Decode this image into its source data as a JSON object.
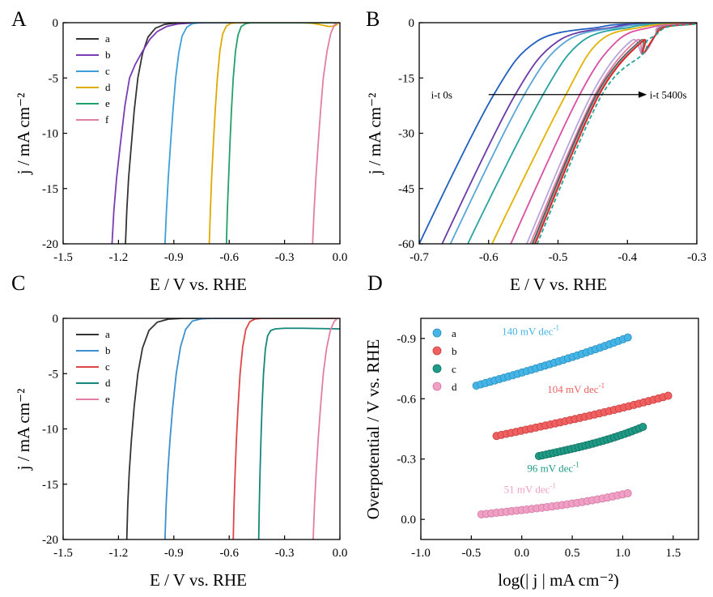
{
  "chart_data": [
    {
      "panel": "A",
      "type": "line",
      "xlabel": "E / V vs. RHE",
      "ylabel": "j / mA cm⁻²",
      "xlim": [
        -1.5,
        0.0
      ],
      "ylim": [
        -20,
        0
      ],
      "xticks": [
        -1.5,
        -1.2,
        -0.9,
        -0.6,
        -0.3,
        0.0
      ],
      "xtick_labels": [
        "-1.5",
        "-1.2",
        "-0.9",
        "-0.6",
        "-0.3",
        "0.0"
      ],
      "yticks": [
        0,
        -5,
        -10,
        -15,
        -20
      ],
      "ytick_labels": [
        "0",
        "-5",
        "-10",
        "-15",
        "-20"
      ],
      "legend": "top-left",
      "series": [
        {
          "name": "a",
          "color": "#333333",
          "points": [
            [
              -1.162,
              -20
            ],
            [
              -1.155,
              -17
            ],
            [
              -1.145,
              -14
            ],
            [
              -1.13,
              -11
            ],
            [
              -1.115,
              -8
            ],
            [
              -1.095,
              -5
            ],
            [
              -1.07,
              -2.8
            ],
            [
              -1.04,
              -1.3
            ],
            [
              -1.0,
              -0.5
            ],
            [
              -0.95,
              -0.15
            ],
            [
              -0.9,
              -0.05
            ],
            [
              -0.8,
              0
            ],
            [
              0.0,
              0
            ]
          ]
        },
        {
          "name": "b",
          "color": "#7a3bb5",
          "points": [
            [
              -1.235,
              -20
            ],
            [
              -1.225,
              -17
            ],
            [
              -1.21,
              -14
            ],
            [
              -1.19,
              -11
            ],
            [
              -1.165,
              -7.5
            ],
            [
              -1.14,
              -5
            ],
            [
              -1.11,
              -3.8
            ],
            [
              -1.07,
              -2.6
            ],
            [
              -1.03,
              -1.5
            ],
            [
              -0.99,
              -0.8
            ],
            [
              -0.94,
              -0.35
            ],
            [
              -0.88,
              -0.12
            ],
            [
              -0.8,
              -0.03
            ],
            [
              -0.7,
              0
            ],
            [
              0.0,
              0
            ]
          ]
        },
        {
          "name": "c",
          "color": "#3d9fd9",
          "points": [
            [
              -0.948,
              -20
            ],
            [
              -0.94,
              -17
            ],
            [
              -0.93,
              -14
            ],
            [
              -0.918,
              -11
            ],
            [
              -0.905,
              -8
            ],
            [
              -0.89,
              -5
            ],
            [
              -0.873,
              -2.7
            ],
            [
              -0.855,
              -1.2
            ],
            [
              -0.83,
              -0.4
            ],
            [
              -0.8,
              -0.1
            ],
            [
              -0.76,
              0
            ],
            [
              0.0,
              0
            ]
          ]
        },
        {
          "name": "d",
          "color": "#e0a900",
          "points": [
            [
              -0.708,
              -20
            ],
            [
              -0.702,
              -17
            ],
            [
              -0.695,
              -14
            ],
            [
              -0.686,
              -11
            ],
            [
              -0.676,
              -8
            ],
            [
              -0.664,
              -5
            ],
            [
              -0.65,
              -2.5
            ],
            [
              -0.635,
              -1.0
            ],
            [
              -0.615,
              -0.3
            ],
            [
              -0.59,
              -0.05
            ],
            [
              -0.55,
              0
            ],
            [
              0.0,
              0
            ]
          ]
        },
        {
          "name": "e",
          "color": "#22a06b",
          "points": [
            [
              -0.615,
              -20
            ],
            [
              -0.61,
              -17
            ],
            [
              -0.603,
              -14
            ],
            [
              -0.596,
              -11
            ],
            [
              -0.588,
              -8
            ],
            [
              -0.578,
              -5
            ],
            [
              -0.566,
              -2.6
            ],
            [
              -0.552,
              -1.1
            ],
            [
              -0.535,
              -0.35
            ],
            [
              -0.51,
              -0.08
            ],
            [
              -0.48,
              0
            ],
            [
              0.0,
              0
            ]
          ]
        },
        {
          "name": "f",
          "color": "#e07ea6",
          "points": [
            [
              -0.148,
              -20
            ],
            [
              -0.14,
              -17
            ],
            [
              -0.13,
              -14
            ],
            [
              -0.118,
              -11
            ],
            [
              -0.105,
              -8
            ],
            [
              -0.09,
              -5
            ],
            [
              -0.07,
              -2.6
            ],
            [
              -0.05,
              -1.0
            ],
            [
              -0.03,
              -0.2
            ],
            [
              -0.015,
              0
            ],
            [
              -0.005,
              0
            ]
          ]
        }
      ],
      "extra_traces": [
        {
          "color": "#e0a900",
          "points": [
            [
              -0.22,
              0
            ],
            [
              -0.15,
              -0.05
            ],
            [
              -0.1,
              -0.2
            ],
            [
              -0.06,
              -0.35
            ],
            [
              -0.03,
              -0.3
            ],
            [
              -0.01,
              -0.1
            ]
          ]
        }
      ]
    },
    {
      "panel": "B",
      "type": "line",
      "xlabel": "E / V vs. RHE",
      "ylabel": "j / mA cm⁻²",
      "xlim": [
        -0.7,
        -0.3
      ],
      "ylim": [
        -60,
        0
      ],
      "xticks": [
        -0.7,
        -0.6,
        -0.5,
        -0.4,
        -0.3
      ],
      "xtick_labels": [
        "-0.7",
        "-0.6",
        "-0.5",
        "-0.4",
        "-0.3"
      ],
      "yticks": [
        0,
        -15,
        -30,
        -45,
        -60
      ],
      "ytick_labels": [
        "0",
        "-15",
        "-30",
        "-45",
        "-60"
      ],
      "annotation_left": "i-t 0s",
      "annotation_right": "i-t 5400s",
      "series": [
        {
          "color": "#1f5fbf",
          "x60": -0.7,
          "x20": -0.594,
          "x05": -0.53,
          "x01": -0.44
        },
        {
          "color": "#6a3aa8",
          "x60": -0.667,
          "x20": -0.563,
          "x05": -0.5,
          "x01": -0.42
        },
        {
          "color": "#5aa6d6",
          "x60": -0.655,
          "x20": -0.55,
          "x05": -0.488,
          "x01": -0.41
        },
        {
          "color": "#2aa3a0",
          "x60": -0.63,
          "x20": -0.523,
          "x05": -0.465,
          "x01": -0.395
        },
        {
          "color": "#e3b100",
          "x60": -0.595,
          "x20": -0.49,
          "x05": -0.44,
          "x01": -0.38
        },
        {
          "color": "#d94fa3",
          "x60": -0.568,
          "x20": -0.47,
          "x05": -0.415,
          "x01": -0.365
        },
        {
          "color": "#b9a6d8",
          "x60": -0.545,
          "x20": -0.453,
          "x05": -0.395,
          "x01": -0.355
        },
        {
          "color": "#e07ea6",
          "x60": -0.54,
          "x20": -0.448,
          "x05": -0.388,
          "x01": -0.352
        },
        {
          "color": "#555555",
          "x60": -0.537,
          "x20": -0.446,
          "x05": -0.382,
          "x01": -0.35
        },
        {
          "color": "#9a9a9a",
          "x60": -0.535,
          "x20": -0.444,
          "x05": -0.38,
          "x01": -0.348
        },
        {
          "color": "#e02020",
          "x60": -0.533,
          "x20": -0.442,
          "x05": -0.378,
          "x01": -0.346
        },
        {
          "color": "#26a69a",
          "x60": -0.53,
          "x20": -0.438,
          "x05": -0.372,
          "x01": -0.343,
          "dashed": true
        }
      ]
    },
    {
      "panel": "C",
      "type": "line",
      "xlabel": "E / V vs. RHE",
      "ylabel": "j / mA cm⁻²",
      "xlim": [
        -1.5,
        0.0
      ],
      "ylim": [
        -20,
        0
      ],
      "xticks": [
        -1.5,
        -1.2,
        -0.9,
        -0.6,
        -0.3,
        0.0
      ],
      "xtick_labels": [
        "-1.5",
        "-1.2",
        "-0.9",
        "-0.6",
        "-0.3",
        "0.0"
      ],
      "yticks": [
        0,
        -5,
        -10,
        -15,
        -20
      ],
      "ytick_labels": [
        "0",
        "-5",
        "-10",
        "-15",
        "-20"
      ],
      "legend": "top-left",
      "series": [
        {
          "name": "a",
          "color": "#333333",
          "points": [
            [
              -1.155,
              -20
            ],
            [
              -1.15,
              -17
            ],
            [
              -1.142,
              -14
            ],
            [
              -1.13,
              -11
            ],
            [
              -1.115,
              -8
            ],
            [
              -1.095,
              -5
            ],
            [
              -1.07,
              -2.7
            ],
            [
              -1.035,
              -1.1
            ],
            [
              -0.99,
              -0.35
            ],
            [
              -0.93,
              -0.07
            ],
            [
              -0.85,
              0
            ],
            [
              0.0,
              0
            ]
          ]
        },
        {
          "name": "b",
          "color": "#3d8fd0",
          "points": [
            [
              -0.948,
              -20
            ],
            [
              -0.942,
              -17
            ],
            [
              -0.933,
              -14
            ],
            [
              -0.921,
              -11
            ],
            [
              -0.906,
              -8
            ],
            [
              -0.887,
              -5
            ],
            [
              -0.864,
              -2.6
            ],
            [
              -0.836,
              -1.0
            ],
            [
              -0.8,
              -0.25
            ],
            [
              -0.75,
              -0.04
            ],
            [
              -0.68,
              0
            ],
            [
              0.0,
              0
            ]
          ]
        },
        {
          "name": "c",
          "color": "#e04545",
          "points": [
            [
              -0.578,
              -20
            ],
            [
              -0.574,
              -17
            ],
            [
              -0.568,
              -14
            ],
            [
              -0.561,
              -11
            ],
            [
              -0.552,
              -8
            ],
            [
              -0.541,
              -5
            ],
            [
              -0.527,
              -2.6
            ],
            [
              -0.51,
              -1.0
            ],
            [
              -0.488,
              -0.3
            ],
            [
              -0.46,
              -0.06
            ],
            [
              -0.42,
              0
            ],
            [
              0.0,
              0
            ]
          ]
        },
        {
          "name": "d",
          "color": "#13887a",
          "points": [
            [
              -0.44,
              -20
            ],
            [
              -0.437,
              -17
            ],
            [
              -0.433,
              -14
            ],
            [
              -0.428,
              -11
            ],
            [
              -0.422,
              -8
            ],
            [
              -0.414,
              -5
            ],
            [
              -0.404,
              -2.8
            ],
            [
              -0.392,
              -1.6
            ],
            [
              -0.375,
              -1.1
            ],
            [
              -0.35,
              -0.95
            ],
            [
              -0.3,
              -0.9
            ],
            [
              -0.2,
              -0.9
            ],
            [
              0.0,
              -0.95
            ]
          ]
        },
        {
          "name": "e",
          "color": "#e07ea6",
          "points": [
            [
              -0.145,
              -20
            ],
            [
              -0.138,
              -17
            ],
            [
              -0.129,
              -14
            ],
            [
              -0.118,
              -11
            ],
            [
              -0.105,
              -8
            ],
            [
              -0.09,
              -5
            ],
            [
              -0.072,
              -2.7
            ],
            [
              -0.052,
              -1.1
            ],
            [
              -0.032,
              -0.3
            ],
            [
              -0.015,
              -0.02
            ],
            [
              0.0,
              0
            ]
          ]
        }
      ]
    },
    {
      "panel": "D",
      "type": "scatter",
      "xlabel": "log(| j | mA cm⁻²)",
      "ylabel": "Overpotential / V vs. RHE",
      "xlim": [
        -1.0,
        1.75
      ],
      "ylim": [
        0.1,
        -1.0
      ],
      "xticks": [
        -1.0,
        -0.5,
        0.0,
        0.5,
        1.0,
        1.5
      ],
      "xtick_labels": [
        "-1.0",
        "-0.5",
        "0.0",
        "0.5",
        "1.0",
        "1.5"
      ],
      "yticks": [
        -0.9,
        -0.6,
        -0.3,
        0.0
      ],
      "ytick_labels": [
        "-0.9",
        "-0.6",
        "-0.3",
        "0.0"
      ],
      "legend": "top-left",
      "series": [
        {
          "name": "a",
          "color": "#45b5e6",
          "edge": "#2a8fc0",
          "x_start": -0.45,
          "x_end": 1.05,
          "y_start": -0.665,
          "y_end": -0.88,
          "curve": 0.025,
          "n": 34,
          "slope_label": "140 mV dec",
          "slope_sup": "-1"
        },
        {
          "name": "b",
          "color": "#f06060",
          "edge": "#c84040",
          "x_start": -0.25,
          "x_end": 1.45,
          "y_start": -0.415,
          "y_end": -0.595,
          "curve": 0.02,
          "n": 36,
          "slope_label": "104 mV dec",
          "slope_sup": "-1"
        },
        {
          "name": "c",
          "color": "#1f9a86",
          "edge": "#127060",
          "x_start": 0.17,
          "x_end": 1.2,
          "y_start": -0.315,
          "y_end": -0.425,
          "curve": 0.035,
          "n": 30,
          "slope_label": "96 mV dec",
          "slope_sup": "-1"
        },
        {
          "name": "d",
          "color": "#f0a0c4",
          "edge": "#d47aa4",
          "x_start": -0.4,
          "x_end": 1.05,
          "y_start": -0.025,
          "y_end": -0.1,
          "curve": 0.03,
          "n": 30,
          "slope_label": "51 mV dec",
          "slope_sup": "-1"
        }
      ]
    }
  ]
}
